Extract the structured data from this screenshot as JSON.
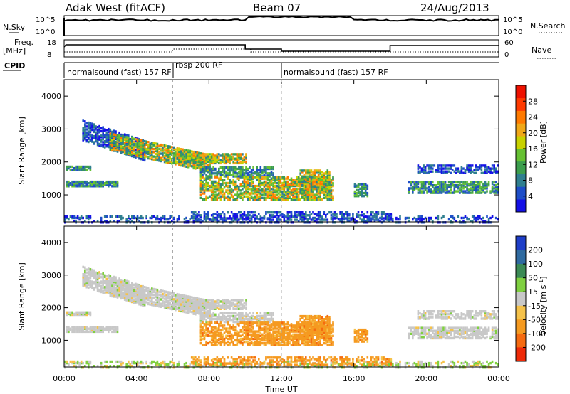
{
  "header": {
    "radar": "Adak West (fitACF)",
    "beam": "Beam 07",
    "date": "24/Aug/2013"
  },
  "strip": {
    "nsky_label": "N.Sky",
    "nsearch_label": "N.Search",
    "freq_label_1": "Freq.",
    "freq_label_2": "[MHz]",
    "nave_label": "Nave",
    "cpid_label": "CPID",
    "nsky_ticks": [
      "10^5",
      "10^0"
    ],
    "nsearch_ticks": [
      "10^5",
      "10^0"
    ],
    "freq_ticks": [
      "18",
      "8"
    ],
    "nave_ticks": [
      "60",
      "0"
    ],
    "cpid_segments": [
      {
        "label": "normalsound (fast) 157 RF",
        "start": 0,
        "end": 6
      },
      {
        "label": "rbsp 200 RF",
        "start": 6,
        "end": 12
      },
      {
        "label": "normalsound (fast) 157 RF",
        "start": 12,
        "end": 24
      }
    ]
  },
  "chart_data": [
    {
      "type": "heatmap",
      "panel": "power",
      "ylabel": "Slant Range [km]",
      "y_ticks": [
        "1000",
        "2000",
        "3000",
        "4000"
      ],
      "ylim": [
        180,
        4500
      ],
      "xlim": [
        0,
        24
      ],
      "colorbar_label": "Power [dB]",
      "colorbar_ticks": [
        "4",
        "8",
        "12",
        "16",
        "20",
        "24",
        "28"
      ],
      "colorbar_colors": [
        "#1410e6",
        "#1e4ec8",
        "#2f7f8f",
        "#3c9e4d",
        "#66c133",
        "#c8d200",
        "#f0a818",
        "#ff7a00",
        "#ff3a00",
        "#ee1100"
      ]
    },
    {
      "type": "heatmap",
      "panel": "velocity",
      "ylabel": "Slant Range [km]",
      "xlabel": "Time UT",
      "y_ticks": [
        "1000",
        "2000",
        "3000",
        "4000"
      ],
      "x_ticks": [
        "00:00",
        "04:00",
        "08:00",
        "12:00",
        "16:00",
        "20:00",
        "00:00"
      ],
      "ylim": [
        180,
        4500
      ],
      "xlim": [
        0,
        24
      ],
      "colorbar_label_1": "Velocity [m s",
      "colorbar_label_sup": "-1",
      "colorbar_label_2": "]",
      "colorbar_ticks": [
        "200",
        "100",
        "50",
        "15",
        "-15",
        "-50",
        "-100",
        "-200"
      ],
      "colorbar_colors": [
        "#1e3ec8",
        "#2f6aa0",
        "#3b8a55",
        "#7fd040",
        "#c8c8c8",
        "#f5c24a",
        "#f59a20",
        "#f56a10",
        "#ee2a08"
      ]
    }
  ],
  "guide_times": [
    6,
    12
  ]
}
